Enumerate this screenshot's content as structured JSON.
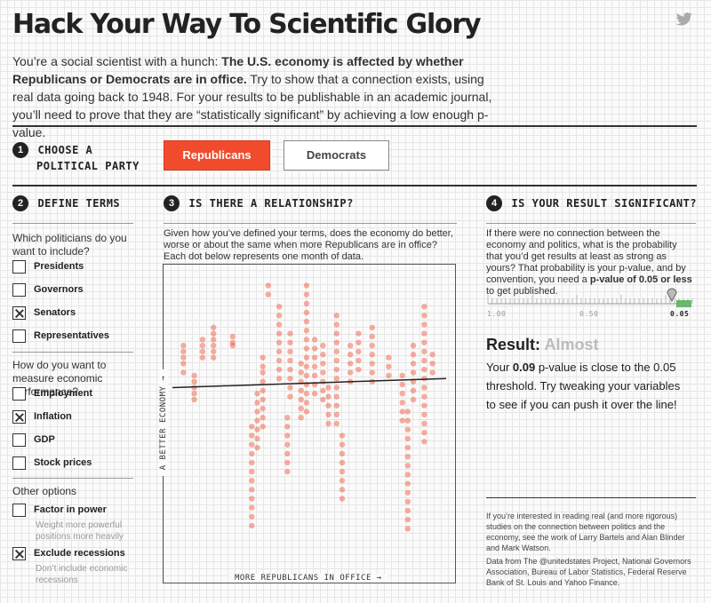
{
  "title": "Hack Your Way To Scientific Glory",
  "intro": {
    "lead": "You’re a social scientist with a hunch: ",
    "bold": "The U.S. economy is affected by whether Republicans or Democrats are in office.",
    "rest": " Try to show that a connection exists, using real data going back to 1948. For your results to be publishable in an academic journal, you’ll need to prove that they are “statistically significant” by achieving a low enough p-value."
  },
  "icons": {
    "share": "twitter-bird-icon"
  },
  "step1": {
    "num": "1",
    "title_line1": "Choose a",
    "title_line2": "political party",
    "buttons": [
      {
        "label": "Republicans",
        "selected": true
      },
      {
        "label": "Democrats",
        "selected": false
      }
    ]
  },
  "step2": {
    "num": "2",
    "title": "Define terms",
    "q1": "Which politicians do you want to include?",
    "politicians": [
      {
        "label": "Presidents",
        "checked": false
      },
      {
        "label": "Governors",
        "checked": false
      },
      {
        "label": "Senators",
        "checked": true
      },
      {
        "label": "Representatives",
        "checked": false
      }
    ],
    "q2": "How do you want to measure economic performance?",
    "measures": [
      {
        "label": "Employment",
        "checked": false
      },
      {
        "label": "Inflation",
        "checked": true
      },
      {
        "label": "GDP",
        "checked": false
      },
      {
        "label": "Stock prices",
        "checked": false
      }
    ],
    "q3": "Other options",
    "options": [
      {
        "label": "Factor in power",
        "checked": false,
        "note": "Weight more powerful positions more heavily"
      },
      {
        "label": "Exclude recessions",
        "checked": true,
        "note": "Don’t include economic recessions"
      }
    ]
  },
  "step3": {
    "num": "3",
    "title": "Is there a relationship?",
    "desc": "Given how you’ve defined your terms, does the economy do better, worse or about the same when more Republicans are in office? Each dot below represents one month of data.",
    "x_axis": "MORE REPUBLICANS IN OFFICE →",
    "y_axis": "A BETTER ECONOMY →"
  },
  "step4": {
    "num": "4",
    "title": "Is your result significant?",
    "desc_part1": "If there were no connection between the economy and politics, what is the probability that you’d get results at least as strong as yours? That probability is your p-value, and by convention, you need a ",
    "desc_bold": "p-value of 0.05 or less",
    "desc_part2": " to get published.",
    "scale_labels": [
      "1.00",
      "0.50",
      "0.05"
    ],
    "result_label": "Result:",
    "result_value": "Almost",
    "text_part1": "Your ",
    "text_bold": "0.09",
    "text_part2": " p-value is close to the 0.05 threshold. Try tweaking your variables to see if you can push it over the line!",
    "pvalue": 0.09
  },
  "footer": {
    "p1": "If you’re interested in reading real (and more rigorous) studies on the connection between politics and the economy, see the work of Larry Bartels and Alan Blinder and Mark Watson.",
    "p2": "Data from The @unitedstates Project, National Governors Association, Bureau of Labor Statistics, Federal Reserve Bank of St. Louis and Yahoo Finance."
  },
  "colors": {
    "accent": "#f04b2d",
    "dark": "#222222",
    "significant": "#4caf50",
    "muted": "#bbbbbb"
  },
  "chart_data": {
    "type": "scatter",
    "xlabel": "MORE REPUBLICANS IN OFFICE →",
    "ylabel": "A BETTER ECONOMY →",
    "xlim": [
      0,
      1
    ],
    "ylim": [
      0,
      1
    ],
    "trend": {
      "x": [
        0,
        1
      ],
      "y": [
        0.62,
        0.65
      ]
    },
    "columns": [
      {
        "x": 0.04,
        "y": [
          0.76,
          0.74,
          0.72,
          0.7,
          0.67
        ]
      },
      {
        "x": 0.08,
        "y": [
          0.66,
          0.64,
          0.62,
          0.6,
          0.58
        ]
      },
      {
        "x": 0.11,
        "y": [
          0.78,
          0.76,
          0.74,
          0.72
        ]
      },
      {
        "x": 0.15,
        "y": [
          0.82,
          0.8,
          0.78,
          0.76,
          0.74,
          0.72
        ]
      },
      {
        "x": 0.22,
        "y": [
          0.79,
          0.77,
          0.76
        ]
      },
      {
        "x": 0.29,
        "y": [
          0.49,
          0.46,
          0.43,
          0.4,
          0.37,
          0.34,
          0.31,
          0.28,
          0.25,
          0.22,
          0.19,
          0.16
        ]
      },
      {
        "x": 0.31,
        "y": [
          0.6,
          0.57,
          0.54,
          0.51,
          0.48,
          0.45,
          0.42
        ]
      },
      {
        "x": 0.33,
        "y": [
          0.72,
          0.69,
          0.67,
          0.64,
          0.61,
          0.58,
          0.55,
          0.52,
          0.49
        ]
      },
      {
        "x": 0.35,
        "y": [
          0.96,
          0.93
        ]
      },
      {
        "x": 0.39,
        "y": [
          0.89,
          0.86,
          0.83,
          0.8,
          0.77,
          0.74,
          0.71,
          0.68,
          0.65
        ]
      },
      {
        "x": 0.42,
        "y": [
          0.52,
          0.49,
          0.46,
          0.43,
          0.4,
          0.37,
          0.34
        ]
      },
      {
        "x": 0.43,
        "y": [
          0.8,
          0.77,
          0.74,
          0.71,
          0.68,
          0.65,
          0.62,
          0.59
        ]
      },
      {
        "x": 0.47,
        "y": [
          0.7,
          0.67,
          0.64,
          0.61,
          0.58,
          0.55,
          0.52
        ]
      },
      {
        "x": 0.49,
        "y": [
          0.96,
          0.93,
          0.9,
          0.87,
          0.84,
          0.81,
          0.78,
          0.75,
          0.72,
          0.69,
          0.66,
          0.63,
          0.6,
          0.57,
          0.54
        ]
      },
      {
        "x": 0.52,
        "y": [
          0.78,
          0.75,
          0.72,
          0.69,
          0.66,
          0.63,
          0.6
        ]
      },
      {
        "x": 0.55,
        "y": [
          0.76,
          0.73,
          0.7,
          0.67,
          0.64,
          0.61,
          0.58
        ]
      },
      {
        "x": 0.57,
        "y": [
          0.62,
          0.59,
          0.56,
          0.53,
          0.5
        ]
      },
      {
        "x": 0.6,
        "y": [
          0.86,
          0.83,
          0.8,
          0.77,
          0.74,
          0.71,
          0.68,
          0.65,
          0.62,
          0.59,
          0.56,
          0.53,
          0.5
        ]
      },
      {
        "x": 0.62,
        "y": [
          0.46,
          0.43,
          0.4,
          0.37,
          0.34,
          0.31,
          0.28,
          0.25
        ]
      },
      {
        "x": 0.65,
        "y": [
          0.76,
          0.73,
          0.7,
          0.67,
          0.64
        ]
      },
      {
        "x": 0.68,
        "y": [
          0.8,
          0.77,
          0.74,
          0.71,
          0.68
        ]
      },
      {
        "x": 0.73,
        "y": [
          0.82,
          0.79,
          0.76,
          0.73,
          0.7,
          0.67,
          0.64
        ]
      },
      {
        "x": 0.79,
        "y": [
          0.72,
          0.69,
          0.66
        ]
      },
      {
        "x": 0.84,
        "y": [
          0.66,
          0.63,
          0.6,
          0.57,
          0.54,
          0.51
        ]
      },
      {
        "x": 0.86,
        "y": [
          0.54,
          0.51,
          0.48,
          0.45,
          0.42,
          0.39,
          0.36,
          0.33,
          0.3,
          0.27,
          0.24,
          0.21,
          0.18,
          0.15
        ]
      },
      {
        "x": 0.88,
        "y": [
          0.76,
          0.73,
          0.7,
          0.67,
          0.64,
          0.61,
          0.58
        ]
      },
      {
        "x": 0.92,
        "y": [
          0.89,
          0.86,
          0.83,
          0.8,
          0.77,
          0.74,
          0.71,
          0.68,
          0.65,
          0.62,
          0.59,
          0.56,
          0.53,
          0.5,
          0.47,
          0.44
        ]
      },
      {
        "x": 0.95,
        "y": [
          0.73,
          0.7,
          0.67
        ]
      }
    ]
  }
}
